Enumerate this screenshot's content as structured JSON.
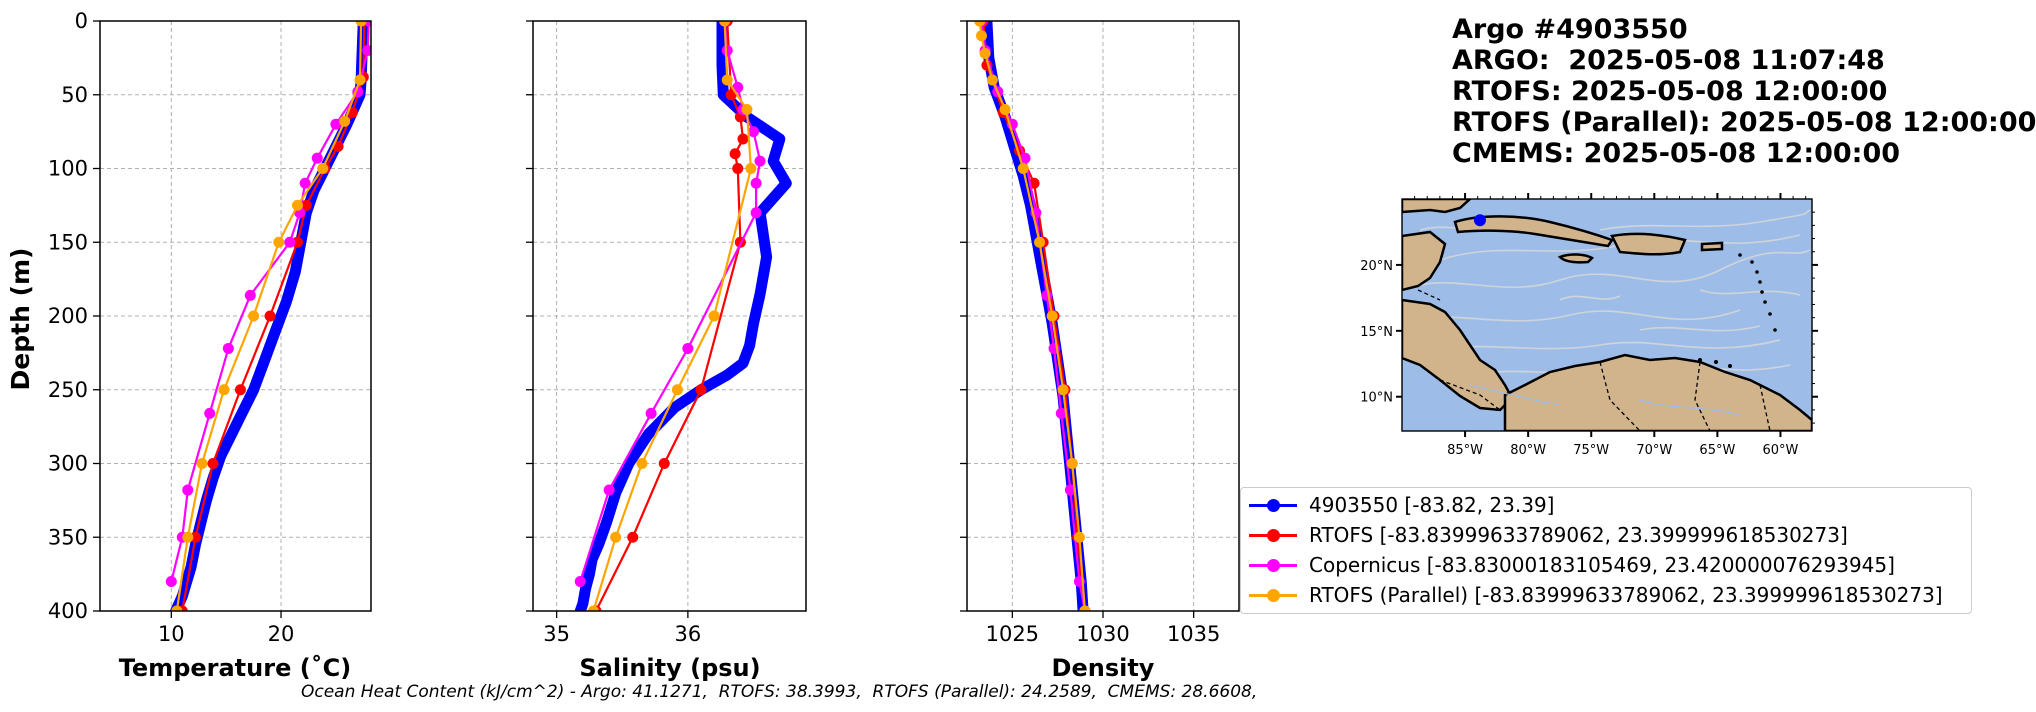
{
  "info": {
    "lines": [
      "Argo #4903550",
      "ARGO:  2025-05-08 11:07:48",
      "RTOFS: 2025-05-08 12:00:00",
      "RTOFS (Parallel): 2025-05-08 12:00:00",
      "CMEMS: 2025-05-08 12:00:00"
    ]
  },
  "colors": {
    "argo": "#0000ff",
    "rtofs": "#ff0000",
    "copernicus": "#ff00ff",
    "parallel": "#ffa500"
  },
  "legend": [
    {
      "label": "4903550 [-83.82, 23.39]",
      "color": "#0000ff"
    },
    {
      "label": "RTOFS [-83.83999633789062, 23.399999618530273]",
      "color": "#ff0000"
    },
    {
      "label": "Copernicus [-83.83000183105469, 23.420000076293945]",
      "color": "#ff00ff"
    },
    {
      "label": "RTOFS (Parallel) [-83.83999633789062, 23.399999618530273]",
      "color": "#ffa500"
    }
  ],
  "footer": "Ocean Heat Content (kJ/cm^2) - Argo: 41.1271,  RTOFS: 38.3993,  RTOFS (Parallel): 24.2589,  CMEMS: 28.6608,",
  "map": {
    "lat_labels": [
      "20°N",
      "15°N",
      "10°N"
    ],
    "lon_labels": [
      "85°W",
      "80°W",
      "75°W",
      "70°W",
      "65°W",
      "60°W"
    ],
    "float_position": {
      "lon": -83.82,
      "lat": 23.39
    }
  },
  "chart_data": [
    {
      "type": "line",
      "xlabel": "Temperature (˚C)",
      "ylabel": "Depth (m)",
      "xlim": [
        3.5,
        28.2
      ],
      "ylim": [
        400,
        0
      ],
      "xticks": [
        10,
        20
      ],
      "yticks": [
        0,
        50,
        100,
        150,
        200,
        250,
        300,
        350,
        400
      ],
      "grid": true,
      "series": [
        {
          "name": "4903550",
          "color": "#0000ff",
          "marker": "dense",
          "x": [
            27.5,
            27.4,
            27.3,
            27.2,
            26.0,
            25.0,
            24.0,
            23.0,
            22.3,
            21.8,
            21.3,
            20.5,
            19.5,
            18.5,
            17.5,
            16.5,
            15.5,
            14.5,
            13.8,
            13.2,
            12.7,
            12.2,
            11.8,
            11.4,
            11.0,
            10.7,
            10.4
          ],
          "y": [
            0,
            20,
            40,
            50,
            70,
            85,
            100,
            115,
            130,
            150,
            170,
            190,
            210,
            230,
            250,
            265,
            280,
            295,
            310,
            325,
            340,
            355,
            370,
            380,
            390,
            395,
            400
          ]
        },
        {
          "name": "RTOFS",
          "color": "#ff0000",
          "marker": "o",
          "x": [
            27.6,
            27.5,
            26.5,
            25.2,
            24.0,
            22.3,
            21.5,
            19.0,
            16.3,
            13.8,
            12.2,
            11.0
          ],
          "y": [
            0,
            38,
            62,
            85,
            100,
            125,
            150,
            200,
            250,
            300,
            350,
            400
          ]
        },
        {
          "name": "Copernicus",
          "color": "#ff00ff",
          "marker": "o",
          "x": [
            28.0,
            27.9,
            27.0,
            25.0,
            23.3,
            22.2,
            21.7,
            20.8,
            17.2,
            15.2,
            13.5,
            11.5,
            11.0,
            10.0
          ],
          "y": [
            0,
            20,
            48,
            70,
            93,
            110,
            130,
            150,
            186,
            222,
            266,
            318,
            350,
            380
          ]
        },
        {
          "name": "RTOFS (Parallel)",
          "color": "#ffa500",
          "marker": "o",
          "x": [
            27.3,
            27.2,
            25.8,
            23.8,
            21.5,
            19.8,
            17.5,
            14.8,
            12.8,
            11.5,
            10.5
          ],
          "y": [
            0,
            40,
            68,
            100,
            125,
            150,
            200,
            250,
            300,
            350,
            400
          ]
        }
      ]
    },
    {
      "type": "line",
      "xlabel": "Salinity (psu)",
      "ylabel": "",
      "xlim": [
        34.82,
        36.9
      ],
      "ylim": [
        400,
        0
      ],
      "xticks": [
        35,
        36
      ],
      "yticks": [
        0,
        50,
        100,
        150,
        200,
        250,
        300,
        350,
        400
      ],
      "grid": true,
      "series": [
        {
          "name": "4903550",
          "color": "#0000ff",
          "marker": "dense",
          "x": [
            36.26,
            36.26,
            36.27,
            36.45,
            36.7,
            36.65,
            36.75,
            36.55,
            36.6,
            36.55,
            36.5,
            36.47,
            36.42,
            36.3,
            36.1,
            35.9,
            35.7,
            35.55,
            35.45,
            35.38,
            35.32,
            35.27,
            35.25,
            35.22,
            35.2,
            35.18
          ],
          "y": [
            0,
            30,
            50,
            65,
            80,
            95,
            110,
            130,
            160,
            185,
            205,
            220,
            232,
            240,
            250,
            262,
            280,
            300,
            320,
            340,
            355,
            365,
            375,
            385,
            395,
            400
          ]
        },
        {
          "name": "RTOFS",
          "color": "#ff0000",
          "marker": "o",
          "x": [
            36.3,
            36.33,
            36.4,
            36.42,
            36.36,
            36.38,
            36.4,
            36.1,
            35.82,
            35.58,
            35.3
          ],
          "y": [
            0,
            50,
            65,
            80,
            90,
            100,
            150,
            250,
            300,
            350,
            400
          ]
        },
        {
          "name": "Copernicus",
          "color": "#ff00ff",
          "marker": "o",
          "x": [
            36.28,
            36.3,
            36.38,
            36.42,
            36.5,
            36.55,
            36.52,
            36.52,
            36.0,
            35.72,
            35.4,
            35.18
          ],
          "y": [
            0,
            20,
            45,
            60,
            75,
            95,
            110,
            130,
            222,
            266,
            318,
            380
          ]
        },
        {
          "name": "RTOFS (Parallel)",
          "color": "#ffa500",
          "marker": "o",
          "x": [
            36.28,
            36.3,
            36.45,
            36.48,
            36.2,
            35.92,
            35.65,
            35.45,
            35.28
          ],
          "y": [
            0,
            40,
            60,
            100,
            200,
            250,
            300,
            350,
            400
          ]
        }
      ]
    },
    {
      "type": "line",
      "xlabel": "Density",
      "ylabel": "",
      "xlim": [
        1022.5,
        1037.5
      ],
      "ylim": [
        400,
        0
      ],
      "xticks": [
        1025,
        1030,
        1035
      ],
      "yticks": [
        0,
        50,
        100,
        150,
        200,
        250,
        300,
        350,
        400
      ],
      "grid": true,
      "series": [
        {
          "name": "4903550",
          "color": "#0000ff",
          "marker": "dense",
          "x": [
            1023.6,
            1023.7,
            1024.0,
            1024.6,
            1025.1,
            1025.6,
            1026.0,
            1026.3,
            1026.6,
            1026.9,
            1027.2,
            1027.5,
            1027.8,
            1028.0,
            1028.2,
            1028.4,
            1028.6,
            1028.8,
            1028.9
          ],
          "y": [
            0,
            25,
            45,
            65,
            85,
            105,
            125,
            145,
            165,
            185,
            205,
            230,
            255,
            280,
            305,
            330,
            355,
            380,
            400
          ]
        },
        {
          "name": "RTOFS",
          "color": "#ff0000",
          "marker": "o",
          "x": [
            1023.4,
            1023.6,
            1024.5,
            1025.4,
            1026.2,
            1026.7,
            1027.3,
            1027.9,
            1028.3,
            1028.6,
            1029.0
          ],
          "y": [
            0,
            30,
            62,
            88,
            110,
            150,
            200,
            250,
            300,
            350,
            400
          ]
        },
        {
          "name": "Copernicus",
          "color": "#ff00ff",
          "marker": "o",
          "x": [
            1023.3,
            1023.5,
            1024.2,
            1025.0,
            1025.7,
            1026.3,
            1026.9,
            1027.3,
            1027.7,
            1028.2,
            1028.7,
            1029.0
          ],
          "y": [
            0,
            20,
            48,
            70,
            93,
            130,
            186,
            222,
            266,
            318,
            380,
            400
          ]
        },
        {
          "name": "RTOFS (Parallel)",
          "color": "#ffa500",
          "marker": "o",
          "x": [
            1023.2,
            1023.3,
            1023.5,
            1023.9,
            1024.6,
            1025.6,
            1026.5,
            1027.2,
            1027.8,
            1028.3,
            1028.7,
            1029.0
          ],
          "y": [
            0,
            10,
            22,
            40,
            60,
            100,
            150,
            200,
            250,
            300,
            350,
            400
          ]
        }
      ]
    }
  ]
}
